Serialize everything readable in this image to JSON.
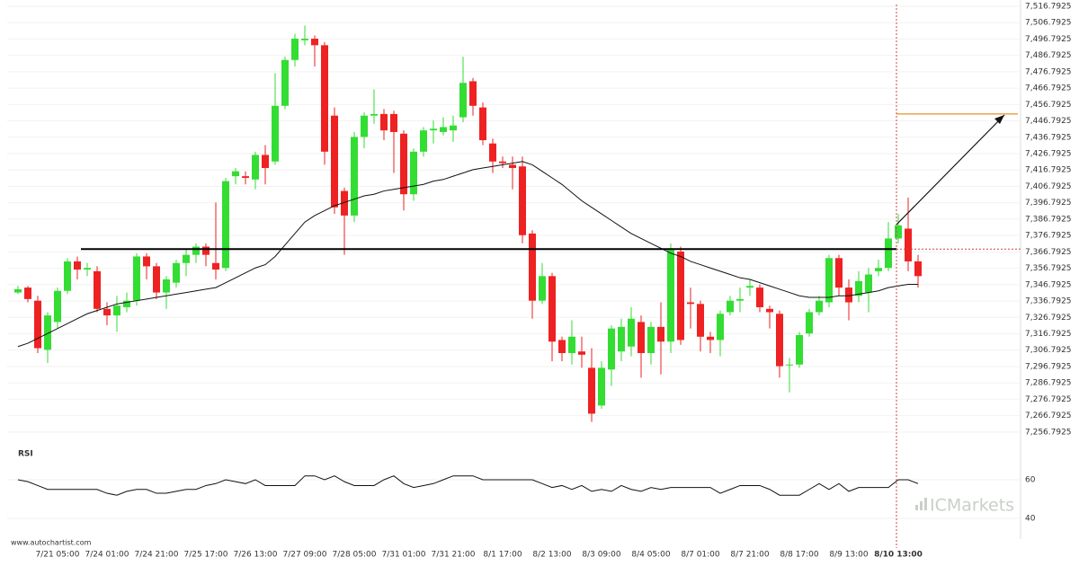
{
  "chart_data": [
    {
      "type": "candlestick",
      "categories": [
        null,
        null,
        null,
        null,
        "7/21 05:00",
        null,
        null,
        null,
        null,
        "7/24 01:00",
        null,
        null,
        null,
        null,
        "7/24 21:00",
        null,
        null,
        null,
        null,
        "7/25 17:00",
        null,
        null,
        null,
        null,
        "7/26 13:00",
        null,
        null,
        null,
        null,
        "7/27 09:00",
        null,
        null,
        null,
        null,
        "7/28 05:00",
        null,
        null,
        null,
        null,
        "7/31 01:00",
        null,
        null,
        null,
        null,
        "7/31 21:00",
        null,
        null,
        null,
        null,
        "8/1 17:00",
        null,
        null,
        null,
        null,
        "8/2 13:00",
        null,
        null,
        null,
        null,
        "8/3 09:00",
        null,
        null,
        null,
        null,
        "8/4 05:00",
        null,
        null,
        null,
        null,
        "8/7 01:00",
        null,
        null,
        null,
        null,
        "8/7 21:00",
        null,
        null,
        null,
        null,
        "8/8 17:00",
        null,
        null,
        null,
        null,
        "8/9 13:00",
        null,
        null,
        null,
        null,
        "8/10 13:00",
        null,
        null
      ],
      "open": [
        7342,
        7345,
        7337,
        7307,
        7324,
        7343,
        7361,
        7356,
        7355,
        7332,
        7328,
        7333,
        7337,
        7364,
        7358,
        7342,
        7348,
        7360,
        7365,
        7370,
        7360,
        7357,
        7413,
        7413,
        7411,
        7426,
        7422,
        7456,
        7484,
        7496,
        7497,
        7493,
        7450,
        7404,
        7389,
        7437,
        7450,
        7451,
        7451,
        7439,
        7402,
        7428,
        7441,
        7440,
        7441,
        7449,
        7471,
        7455,
        7433,
        7422,
        7420,
        7419,
        7378,
        7337,
        7352,
        7313,
        7305,
        7306,
        7296,
        7273,
        7295,
        7306,
        7309,
        7324,
        7305,
        7321,
        7312,
        7367,
        7336,
        7335,
        7315,
        7313,
        7330,
        7337,
        7345,
        7345,
        7332,
        7329,
        7298,
        7298,
        7317,
        7330,
        7336,
        7363,
        7345,
        7340,
        7342,
        7355,
        7357,
        7375,
        7381,
        7361
      ],
      "high": [
        7346,
        7346,
        7340,
        7330,
        7345,
        7363,
        7364,
        7360,
        7358,
        7336,
        7340,
        7342,
        7366,
        7366,
        7360,
        7352,
        7362,
        7368,
        7372,
        7372,
        7397,
        7412,
        7418,
        7416,
        7428,
        7432,
        7476,
        7486,
        7500,
        7505,
        7499,
        7495,
        7455,
        7406,
        7440,
        7452,
        7466,
        7454,
        7453,
        7441,
        7430,
        7443,
        7447,
        7449,
        7450,
        7486,
        7473,
        7458,
        7436,
        7425,
        7425,
        7425,
        7380,
        7360,
        7354,
        7315,
        7325,
        7315,
        7308,
        7300,
        7322,
        7326,
        7333,
        7328,
        7324,
        7336,
        7372,
        7370,
        7345,
        7337,
        7318,
        7331,
        7340,
        7345,
        7350,
        7347,
        7334,
        7331,
        7302,
        7318,
        7332,
        7340,
        7365,
        7365,
        7350,
        7355,
        7357,
        7362,
        7385,
        7390,
        7400,
        7365
      ],
      "low": [
        7341,
        7336,
        7305,
        7299,
        7320,
        7341,
        7350,
        7352,
        7330,
        7322,
        7318,
        7330,
        7334,
        7350,
        7338,
        7332,
        7345,
        7352,
        7360,
        7358,
        7350,
        7355,
        7408,
        7408,
        7405,
        7408,
        7420,
        7454,
        7480,
        7493,
        7480,
        7420,
        7390,
        7365,
        7385,
        7430,
        7445,
        7435,
        7415,
        7392,
        7398,
        7425,
        7433,
        7438,
        7434,
        7446,
        7450,
        7432,
        7415,
        7418,
        7405,
        7372,
        7326,
        7335,
        7300,
        7300,
        7298,
        7296,
        7263,
        7271,
        7285,
        7300,
        7303,
        7290,
        7298,
        7292,
        7305,
        7310,
        7320,
        7306,
        7305,
        7303,
        7328,
        7330,
        7340,
        7330,
        7320,
        7290,
        7281,
        7296,
        7315,
        7328,
        7333,
        7340,
        7325,
        7336,
        7330,
        7352,
        7355,
        7372,
        7355,
        7345
      ],
      "close": [
        7344,
        7338,
        7308,
        7328,
        7343,
        7361,
        7356,
        7357,
        7332,
        7328,
        7334,
        7337,
        7364,
        7358,
        7342,
        7350,
        7360,
        7365,
        7370,
        7365,
        7356,
        7410,
        7416,
        7412,
        7426,
        7418,
        7456,
        7484,
        7497,
        7497,
        7493,
        7428,
        7394,
        7389,
        7437,
        7450,
        7451,
        7441,
        7440,
        7402,
        7428,
        7441,
        7442,
        7443,
        7444,
        7470,
        7456,
        7435,
        7422,
        7421,
        7418,
        7377,
        7337,
        7352,
        7312,
        7305,
        7315,
        7304,
        7268,
        7296,
        7320,
        7321,
        7326,
        7305,
        7321,
        7312,
        7368,
        7313,
        7335,
        7315,
        7313,
        7329,
        7337,
        7338,
        7346,
        7333,
        7330,
        7297,
        7298,
        7316,
        7330,
        7337,
        7363,
        7345,
        7336,
        7349,
        7353,
        7357,
        7375,
        7383,
        7361,
        7352
      ],
      "moving_average": [
        7309,
        7311,
        7314,
        7317,
        7320,
        7323,
        7326,
        7329,
        7331,
        7333,
        7335,
        7336,
        7337,
        7338,
        7339,
        7340,
        7341,
        7342,
        7343,
        7344,
        7345,
        7348,
        7351,
        7354,
        7357,
        7359,
        7364,
        7371,
        7378,
        7385,
        7389,
        7392,
        7395,
        7397,
        7399,
        7401,
        7402,
        7404,
        7405,
        7406,
        7407,
        7408,
        7410,
        7411,
        7413,
        7415,
        7417,
        7418,
        7419,
        7420,
        7421,
        7422,
        7420,
        7416,
        7412,
        7408,
        7403,
        7398,
        7394,
        7390,
        7386,
        7382,
        7378,
        7375,
        7372,
        7369,
        7366,
        7364,
        7361,
        7359,
        7357,
        7355,
        7353,
        7351,
        7350,
        7348,
        7346,
        7344,
        7342,
        7340,
        7339,
        7339,
        7339,
        7340,
        7340,
        7341,
        7342,
        7343,
        7345,
        7346,
        7347,
        7347
      ],
      "up_color": "#33dd33",
      "down_color": "#ee2222",
      "ma_color": "#111111",
      "levels": [
        {
          "value": 7368.5,
          "color": "#000000"
        },
        {
          "value": 7451,
          "color": "#e8902a"
        }
      ],
      "ylim": [
        7251.7925,
        7519.7925
      ],
      "yticks": [
        {
          "value": 7256.7925,
          "label": "7,256.7925"
        },
        {
          "value": 7266.7925,
          "label": "7,266.7925"
        },
        {
          "value": 7276.7925,
          "label": "7,276.7925"
        },
        {
          "value": 7286.7925,
          "label": "7,286.7925"
        },
        {
          "value": 7296.7925,
          "label": "7,296.7925"
        },
        {
          "value": 7306.7925,
          "label": "7,306.7925"
        },
        {
          "value": 7316.7925,
          "label": "7,316.7925"
        },
        {
          "value": 7326.7925,
          "label": "7,326.7925"
        },
        {
          "value": 7336.7925,
          "label": "7,336.7925"
        },
        {
          "value": 7346.7925,
          "label": "7,346.7925"
        },
        {
          "value": 7356.7925,
          "label": "7,356.7925"
        },
        {
          "value": 7366.7925,
          "label": "7,366.7925"
        },
        {
          "value": 7376.7925,
          "label": "7,376.7925"
        },
        {
          "value": 7386.7925,
          "label": "7,386.7925"
        },
        {
          "value": 7396.7925,
          "label": "7,396.7925"
        },
        {
          "value": 7406.7925,
          "label": "7,406.7925"
        },
        {
          "value": 7416.7925,
          "label": "7,416.7925"
        },
        {
          "value": 7426.7925,
          "label": "7,426.7925"
        },
        {
          "value": 7436.7925,
          "label": "7,436.7925"
        },
        {
          "value": 7446.7925,
          "label": "7,446.7925"
        },
        {
          "value": 7456.7925,
          "label": "7,456.7925"
        },
        {
          "value": 7466.7925,
          "label": "7,466.7925"
        },
        {
          "value": 7476.7925,
          "label": "7,476.7925"
        },
        {
          "value": 7486.7925,
          "label": "7,486.7925"
        },
        {
          "value": 7496.7925,
          "label": "7,496.7925"
        },
        {
          "value": 7506.7925,
          "label": "7,506.7925"
        },
        {
          "value": 7516.7925,
          "label": "7,516.7925"
        }
      ],
      "grid": true
    },
    {
      "type": "line",
      "title": "RSI",
      "color": "#111111",
      "values": [
        60,
        59,
        57,
        55,
        55,
        55,
        55,
        55,
        55,
        53,
        52,
        54,
        55,
        55,
        53,
        53,
        54,
        55,
        55,
        57,
        58,
        60,
        59,
        58,
        60,
        57,
        57,
        57,
        57,
        62,
        62,
        60,
        62,
        59,
        57,
        57,
        57,
        60,
        62,
        58,
        56,
        57,
        58,
        60,
        62,
        62,
        62,
        60,
        60,
        60,
        60,
        60,
        60,
        58,
        56,
        57,
        55,
        57,
        54,
        55,
        54,
        57,
        55,
        54,
        56,
        55,
        56,
        56,
        56,
        56,
        56,
        53,
        55,
        57,
        57,
        57,
        55,
        52,
        52,
        52,
        55,
        58,
        55,
        58,
        54,
        56,
        56,
        56,
        56,
        60,
        60,
        58
      ],
      "ylim": [
        30,
        70
      ],
      "yticks": [
        40,
        60
      ]
    }
  ],
  "source": "www.autochartist.com",
  "watermark": "ICMarkets"
}
